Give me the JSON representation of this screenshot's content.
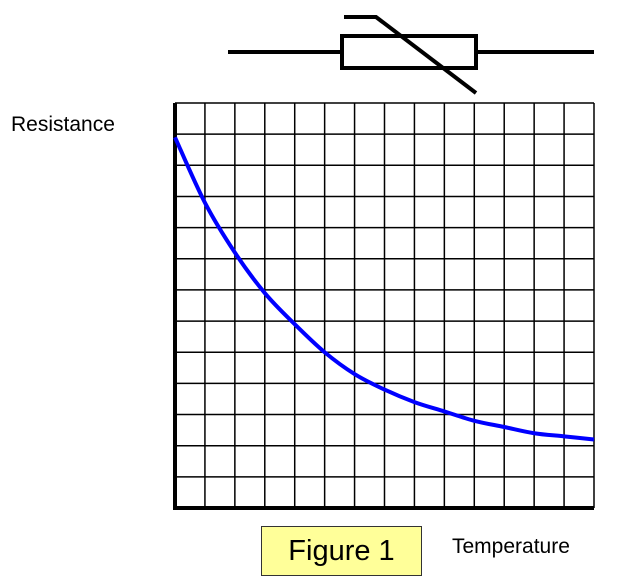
{
  "chart_data": {
    "type": "line",
    "ylabel": "Resistance",
    "xlabel": "Temperature",
    "caption": "Figure 1",
    "x_grid_divisions": 14,
    "y_grid_divisions": 13,
    "grid": true,
    "x": [
      0,
      1,
      2,
      3,
      4,
      5,
      6,
      7,
      8,
      9,
      10,
      11,
      12,
      13,
      14
    ],
    "values": [
      11.9,
      9.8,
      8.2,
      6.9,
      5.9,
      5.0,
      4.3,
      3.8,
      3.4,
      3.1,
      2.8,
      2.6,
      2.4,
      2.3,
      2.2
    ],
    "xlim": [
      0,
      14
    ],
    "ylim": [
      0,
      13
    ],
    "series_color": "#0000ff",
    "grid_color": "#000000",
    "symbol": "thermistor-symbol"
  },
  "colors": {
    "caption_background": "#ffff99",
    "text": "#000000"
  }
}
